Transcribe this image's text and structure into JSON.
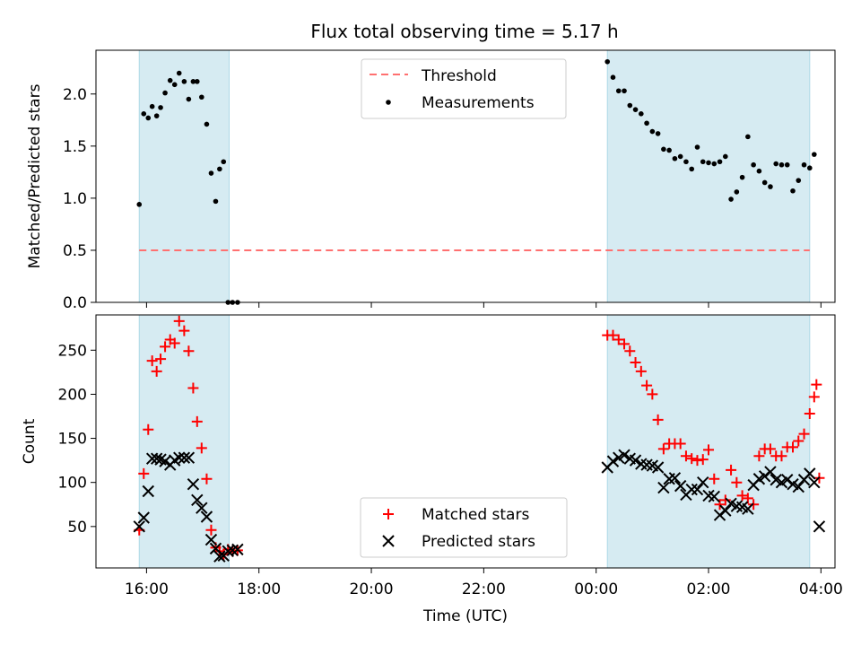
{
  "chart_data": {
    "type": "scatter",
    "title": "Flux total observing time = 5.17 h",
    "xlabel": "Time (UTC)",
    "x_unit": "hours (UTC)",
    "xlim": [
      15.1,
      28.25
    ],
    "x_ticks": [
      {
        "value": 16,
        "label": "16:00"
      },
      {
        "value": 18,
        "label": "18:00"
      },
      {
        "value": 20,
        "label": "20:00"
      },
      {
        "value": 22,
        "label": "22:00"
      },
      {
        "value": 24,
        "label": "00:00"
      },
      {
        "value": 26,
        "label": "02:00"
      },
      {
        "value": 28,
        "label": "04:00"
      }
    ],
    "shaded_intervals": [
      {
        "start": 15.87,
        "end": 17.47,
        "color": "#add8e6"
      },
      {
        "start": 24.2,
        "end": 27.8,
        "color": "#add8e6"
      }
    ],
    "panels": [
      {
        "id": "ratio",
        "ylabel": "Matched/Predicted stars",
        "ylim": [
          0,
          2.42
        ],
        "y_ticks": [
          0.0,
          0.5,
          1.0,
          1.5,
          2.0
        ],
        "y_tick_labels": [
          "0.0",
          "0.5",
          "1.0",
          "1.5",
          "2.0"
        ],
        "legend_position": "upper center",
        "threshold": {
          "name": "Threshold",
          "value": 0.5,
          "start": 15.87,
          "end": 27.8,
          "color": "#ff7070",
          "style": "dashed"
        },
        "series": [
          {
            "name": "Measurements",
            "marker": "dot",
            "color": "#000000",
            "x": [
              15.87,
              15.95,
              16.03,
              16.1,
              16.18,
              16.25,
              16.33,
              16.42,
              16.5,
              16.58,
              16.67,
              16.75,
              16.83,
              16.9,
              16.98,
              17.07,
              17.15,
              17.23,
              17.3,
              17.37,
              17.45,
              17.53,
              17.62,
              24.2,
              24.3,
              24.4,
              24.5,
              24.6,
              24.7,
              24.8,
              24.9,
              25.0,
              25.1,
              25.2,
              25.3,
              25.4,
              25.5,
              25.6,
              25.7,
              25.8,
              25.9,
              26.0,
              26.1,
              26.2,
              26.3,
              26.4,
              26.5,
              26.6,
              26.7,
              26.8,
              26.9,
              27.0,
              27.1,
              27.2,
              27.3,
              27.4,
              27.5,
              27.6,
              27.7,
              27.8,
              27.88
            ],
            "y": [
              0.94,
              1.81,
              1.77,
              1.88,
              1.79,
              1.87,
              2.01,
              2.13,
              2.09,
              2.2,
              2.12,
              1.95,
              2.12,
              2.12,
              1.97,
              1.71,
              1.24,
              0.97,
              1.28,
              1.35,
              0.0,
              0.0,
              0.0,
              2.31,
              2.16,
              2.03,
              2.03,
              1.89,
              1.85,
              1.81,
              1.72,
              1.64,
              1.62,
              1.47,
              1.46,
              1.38,
              1.4,
              1.35,
              1.28,
              1.49,
              1.35,
              1.34,
              1.33,
              1.35,
              1.4,
              0.99,
              1.06,
              1.2,
              1.59,
              1.32,
              1.26,
              1.15,
              1.11,
              1.33,
              1.32,
              1.32,
              1.07,
              1.17,
              1.32,
              1.29,
              1.42
            ]
          }
        ]
      },
      {
        "id": "count",
        "ylabel": "Count",
        "ylim": [
          3,
          290
        ],
        "y_ticks": [
          50,
          100,
          150,
          200,
          250
        ],
        "y_tick_labels": [
          "50",
          "100",
          "150",
          "200",
          "250"
        ],
        "legend_position": "lower center",
        "series": [
          {
            "name": "Matched stars",
            "marker": "plus",
            "color": "#ff0000",
            "x": [
              15.87,
              15.95,
              16.03,
              16.1,
              16.18,
              16.25,
              16.33,
              16.42,
              16.5,
              16.58,
              16.67,
              16.75,
              16.83,
              16.9,
              16.98,
              17.07,
              17.15,
              17.23,
              17.3,
              17.37,
              17.45,
              17.53,
              17.62,
              24.2,
              24.3,
              24.4,
              24.5,
              24.6,
              24.7,
              24.8,
              24.9,
              25.0,
              25.1,
              25.2,
              25.3,
              25.4,
              25.5,
              25.6,
              25.7,
              25.8,
              25.9,
              26.0,
              26.1,
              26.2,
              26.3,
              26.4,
              26.5,
              26.6,
              26.7,
              26.8,
              26.9,
              27.0,
              27.1,
              27.2,
              27.3,
              27.4,
              27.5,
              27.6,
              27.7,
              27.8,
              27.88
            ],
            "y": [
              46,
              110,
              160,
              238,
              226,
              240,
              254,
              262,
              258,
              283,
              272,
              249,
              207,
              169,
              139,
              104,
              46,
              26,
              22,
              18,
              24,
              22,
              23,
              267,
              267,
              262,
              257,
              249,
              236,
              226,
              210,
              200,
              171,
              138,
              144,
              144,
              144,
              130,
              127,
              125,
              126,
              137,
              104,
              75,
              80,
              114,
              100,
              85,
              82,
              75,
              130,
              138,
              138,
              130,
              130,
              140,
              140,
              147,
              155,
              178,
              197
            ]
          },
          {
            "name": "Predicted stars",
            "marker": "x",
            "color": "#000000",
            "x": [
              15.87,
              15.95,
              16.03,
              16.1,
              16.18,
              16.25,
              16.33,
              16.42,
              16.5,
              16.58,
              16.67,
              16.75,
              16.83,
              16.9,
              16.98,
              17.07,
              17.15,
              17.23,
              17.3,
              17.37,
              17.45,
              17.53,
              17.62,
              24.2,
              24.3,
              24.4,
              24.5,
              24.6,
              24.7,
              24.8,
              24.9,
              25.0,
              25.1,
              25.2,
              25.3,
              25.4,
              25.5,
              25.6,
              25.7,
              25.8,
              25.9,
              26.0,
              26.1,
              26.2,
              26.3,
              26.4,
              26.5,
              26.6,
              26.7,
              26.8,
              26.9,
              27.0,
              27.1,
              27.2,
              27.3,
              27.4,
              27.5,
              27.6,
              27.7,
              27.8,
              27.88
            ],
            "y": [
              50,
              60,
              90,
              127,
              127,
              126,
              124,
              120,
              125,
              128,
              128,
              128,
              98,
              80,
              71,
              61,
              35,
              25,
              16,
              17,
              22,
              23,
              24,
              117,
              124,
              128,
              131,
              127,
              125,
              121,
              120,
              119,
              117,
              94,
              104,
              105,
              96,
              86,
              92,
              92,
              100,
              85,
              84,
              63,
              68,
              76,
              73,
              72,
              70,
              97,
              104,
              107,
              112,
              103,
              100,
              103,
              98,
              95,
              103,
              110,
              100
            ]
          }
        ],
        "extra_points": [
          {
            "series": "Matched stars",
            "x": 27.92,
            "y": 211
          },
          {
            "series": "Matched stars",
            "x": 27.97,
            "y": 105
          },
          {
            "series": "Predicted stars",
            "x": 27.97,
            "y": 50
          }
        ]
      }
    ]
  }
}
